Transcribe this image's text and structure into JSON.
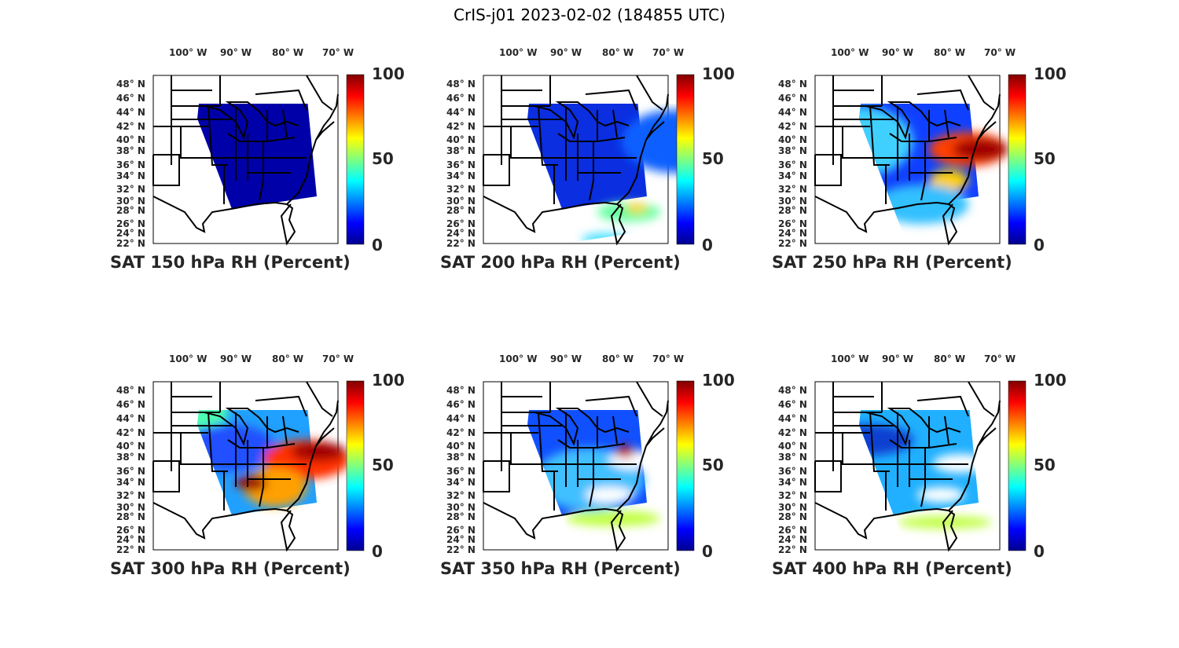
{
  "title": "CrIS-j01 2023-02-02 (184855 UTC)",
  "lon_ticks": [
    "100° W",
    "90° W",
    "80° W",
    "70° W"
  ],
  "lat_ticks": [
    "48° N",
    "46° N",
    "44° N",
    "42° N",
    "40° N",
    "38° N",
    "36° N",
    "34° N",
    "32° N",
    "30° N",
    "28° N",
    "26° N",
    "24° N",
    "22° N"
  ],
  "colorbar": {
    "colormap": "jet",
    "range": [
      0,
      100
    ],
    "ticks": [
      "100",
      "50",
      "0"
    ]
  },
  "panels": [
    {
      "title": "SAT 150 hPa RH (Percent)",
      "level_hPa": 150,
      "dominant_rh": "0-10"
    },
    {
      "title": "SAT 200 hPa RH (Percent)",
      "level_hPa": 200,
      "dominant_rh": "5-30"
    },
    {
      "title": "SAT 250 hPa RH (Percent)",
      "level_hPa": 250,
      "dominant_rh": "10-100"
    },
    {
      "title": "SAT 300 hPa RH (Percent)",
      "level_hPa": 300,
      "dominant_rh": "10-100"
    },
    {
      "title": "SAT 350 hPa RH (Percent)",
      "level_hPa": 350,
      "dominant_rh": "10-90"
    },
    {
      "title": "SAT 400 hPa RH (Percent)",
      "level_hPa": 400,
      "dominant_rh": "10-70"
    }
  ]
}
